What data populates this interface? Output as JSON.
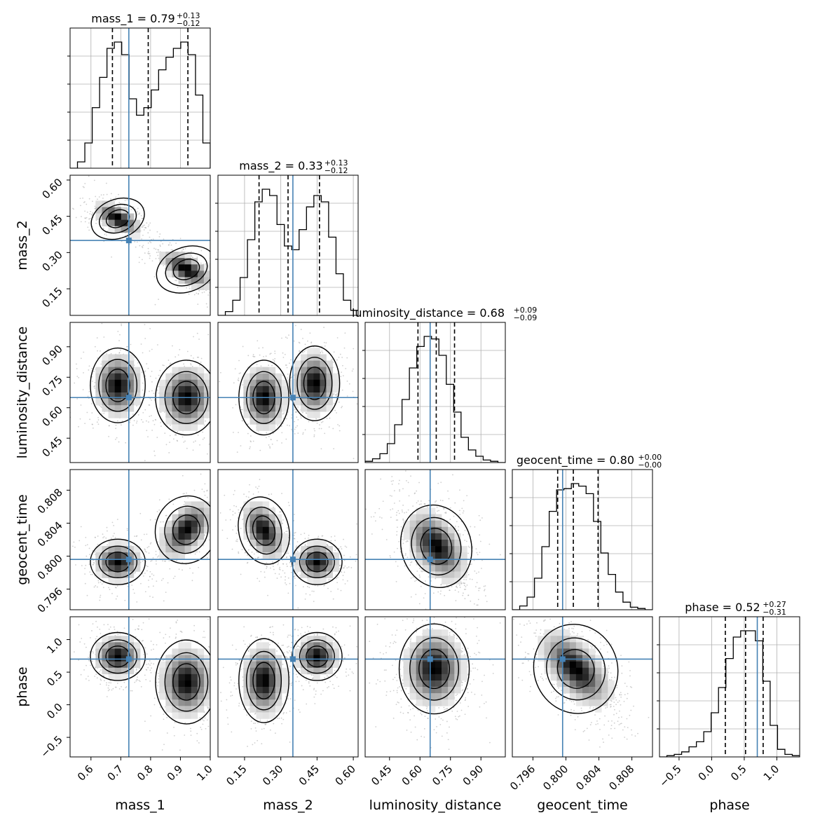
{
  "chart_data": {
    "type": "corner",
    "parameters": [
      {
        "name": "mass_1",
        "label": "mass_1",
        "range": [
          0.53,
          1.0
        ],
        "ticks": [
          0.6,
          0.7,
          0.8,
          0.9,
          1.0
        ],
        "tick_labels": [
          "0.6",
          "0.7",
          "0.8",
          "0.9",
          "1.0"
        ],
        "truth": 0.727,
        "quantiles": [
          0.672,
          0.792,
          0.925
        ],
        "title": {
          "text": "mass_1 = 0.79",
          "plus": "+0.13",
          "minus": "−0.12"
        },
        "hist_peaks": [
          {
            "center": 0.71,
            "width": 0.045,
            "height": 1.0
          },
          {
            "center": 0.92,
            "width": 0.045,
            "height": 1.0
          }
        ],
        "hist_bins": [
          0.0,
          0.05,
          0.2,
          0.48,
          0.72,
          0.95,
          1.0,
          0.9,
          0.55,
          0.42,
          0.48,
          0.62,
          0.78,
          0.88,
          0.95,
          1.0,
          0.9,
          0.58,
          0.2
        ]
      },
      {
        "name": "mass_2",
        "label": "mass_2",
        "range": [
          0.04,
          0.62
        ],
        "ticks": [
          0.15,
          0.3,
          0.45,
          0.6
        ],
        "tick_labels": [
          "0.15",
          "0.30",
          "0.45",
          "0.60"
        ],
        "truth": 0.35,
        "quantiles": [
          0.21,
          0.33,
          0.46
        ],
        "title": {
          "text": "mass_2 = 0.33",
          "plus": "+0.13",
          "minus": "−0.12"
        },
        "hist_peaks": [
          {
            "center": 0.22,
            "width": 0.045,
            "height": 1.0
          },
          {
            "center": 0.44,
            "width": 0.045,
            "height": 1.0
          }
        ],
        "hist_bins": [
          0.0,
          0.03,
          0.12,
          0.3,
          0.6,
          0.9,
          1.0,
          0.95,
          0.72,
          0.55,
          0.52,
          0.68,
          0.86,
          0.95,
          0.9,
          0.62,
          0.33,
          0.12,
          0.04
        ]
      },
      {
        "name": "luminosity_distance",
        "label": "luminosity_distance",
        "range": [
          0.33,
          1.02
        ],
        "ticks": [
          0.45,
          0.6,
          0.75,
          0.9
        ],
        "tick_labels": [
          "0.45",
          "0.60",
          "0.75",
          "0.90"
        ],
        "truth": 0.65,
        "quantiles": [
          0.59,
          0.68,
          0.77
        ],
        "title": {
          "text": "luminosity_distance = 0.68",
          "plus": "+0.09",
          "minus": "−0.09"
        },
        "hist_peaks": [
          {
            "center": 0.68,
            "width": 0.07,
            "height": 1.0
          }
        ],
        "hist_bins": [
          0.01,
          0.03,
          0.07,
          0.15,
          0.3,
          0.5,
          0.75,
          0.92,
          1.0,
          0.98,
          0.85,
          0.62,
          0.4,
          0.2,
          0.1,
          0.05,
          0.02,
          0.01,
          0.0
        ]
      },
      {
        "name": "geocent_time",
        "label": "geocent_time",
        "range": [
          0.7935,
          0.8105
        ],
        "ticks": [
          0.796,
          0.8,
          0.804,
          0.808
        ],
        "tick_labels": [
          "0.796",
          "0.800",
          "0.804",
          "0.808"
        ],
        "truth": 0.7996,
        "quantiles": [
          0.799,
          0.8009,
          0.8039
        ],
        "title": {
          "text": "geocent_time = 0.80",
          "plus": "+0.00",
          "minus": "−0.00"
        },
        "hist_peaks": [
          {
            "center": 0.8012,
            "width": 0.0022,
            "height": 1.0
          }
        ],
        "hist_bins": [
          0.0,
          0.03,
          0.1,
          0.25,
          0.5,
          0.78,
          0.95,
          0.96,
          1.0,
          0.98,
          0.92,
          0.7,
          0.45,
          0.28,
          0.14,
          0.06,
          0.02,
          0.01,
          0.0
        ]
      },
      {
        "name": "phase",
        "label": "phase",
        "range": [
          -0.8,
          1.35
        ],
        "ticks": [
          -0.5,
          0.0,
          0.5,
          1.0
        ],
        "tick_labels": [
          "−0.5",
          "0.0",
          "0.5",
          "1.0"
        ],
        "truth": 0.7,
        "quantiles": [
          0.21,
          0.52,
          0.79
        ],
        "title": {
          "text": "phase = 0.52",
          "plus": "+0.27",
          "minus": "−0.31"
        },
        "hist_peaks": [
          {
            "center": 0.6,
            "width": 0.28,
            "height": 1.0
          }
        ],
        "hist_bins": [
          0.0,
          0.01,
          0.02,
          0.04,
          0.08,
          0.12,
          0.2,
          0.35,
          0.55,
          0.78,
          0.95,
          1.0,
          1.0,
          0.92,
          0.6,
          0.25,
          0.06,
          0.02,
          0.01
        ]
      }
    ],
    "pair_modes": {
      "1-0": [
        {
          "cx": 0.69,
          "cy": 0.44,
          "sx": 0.04,
          "sy": 0.035,
          "rho": -0.6,
          "w": 1.0
        },
        {
          "cx": 0.92,
          "cy": 0.23,
          "sx": 0.045,
          "sy": 0.04,
          "rho": -0.6,
          "w": 1.0
        }
      ],
      "2-0": [
        {
          "cx": 0.69,
          "cy": 0.71,
          "sx": 0.04,
          "sy": 0.08,
          "rho": 0.0,
          "w": 1.0
        },
        {
          "cx": 0.92,
          "cy": 0.65,
          "sx": 0.045,
          "sy": 0.08,
          "rho": 0.0,
          "w": 1.0
        }
      ],
      "2-1": [
        {
          "cx": 0.23,
          "cy": 0.65,
          "sx": 0.045,
          "sy": 0.08,
          "rho": 0.0,
          "w": 1.0
        },
        {
          "cx": 0.44,
          "cy": 0.72,
          "sx": 0.045,
          "sy": 0.08,
          "rho": 0.0,
          "w": 1.0
        }
      ],
      "3-0": [
        {
          "cx": 0.69,
          "cy": 0.7993,
          "sx": 0.04,
          "sy": 0.0012,
          "rho": 0.0,
          "w": 1.0
        },
        {
          "cx": 0.92,
          "cy": 0.8032,
          "sx": 0.045,
          "sy": 0.0018,
          "rho": 0.5,
          "w": 1.0
        }
      ],
      "3-1": [
        {
          "cx": 0.23,
          "cy": 0.8031,
          "sx": 0.045,
          "sy": 0.0018,
          "rho": -0.4,
          "w": 1.0
        },
        {
          "cx": 0.45,
          "cy": 0.7993,
          "sx": 0.045,
          "sy": 0.0012,
          "rho": 0.0,
          "w": 1.0
        }
      ],
      "3-2": [
        {
          "cx": 0.68,
          "cy": 0.8012,
          "sx": 0.075,
          "sy": 0.0022,
          "rho": -0.45,
          "w": 1.0
        }
      ],
      "4-0": [
        {
          "cx": 0.69,
          "cy": 0.74,
          "sx": 0.04,
          "sy": 0.16,
          "rho": 0.0,
          "w": 1.0
        },
        {
          "cx": 0.92,
          "cy": 0.35,
          "sx": 0.045,
          "sy": 0.28,
          "rho": 0.0,
          "w": 1.0
        }
      ],
      "4-1": [
        {
          "cx": 0.23,
          "cy": 0.37,
          "sx": 0.045,
          "sy": 0.28,
          "rho": 0.0,
          "w": 1.0
        },
        {
          "cx": 0.45,
          "cy": 0.74,
          "sx": 0.045,
          "sy": 0.16,
          "rho": 0.0,
          "w": 1.0
        }
      ],
      "4-2": [
        {
          "cx": 0.67,
          "cy": 0.55,
          "sx": 0.075,
          "sy": 0.3,
          "rho": 0.0,
          "w": 1.0
        }
      ],
      "4-3": [
        {
          "cx": 0.8012,
          "cy": 0.55,
          "sx": 0.0022,
          "sy": 0.3,
          "rho": -0.6,
          "w": 1.0
        }
      ]
    },
    "colors": {
      "truth": "#4682b4",
      "hist": "#000000",
      "grid": "#b0b0b0",
      "quantile": "#000000",
      "points": "#a8a8a8"
    }
  }
}
